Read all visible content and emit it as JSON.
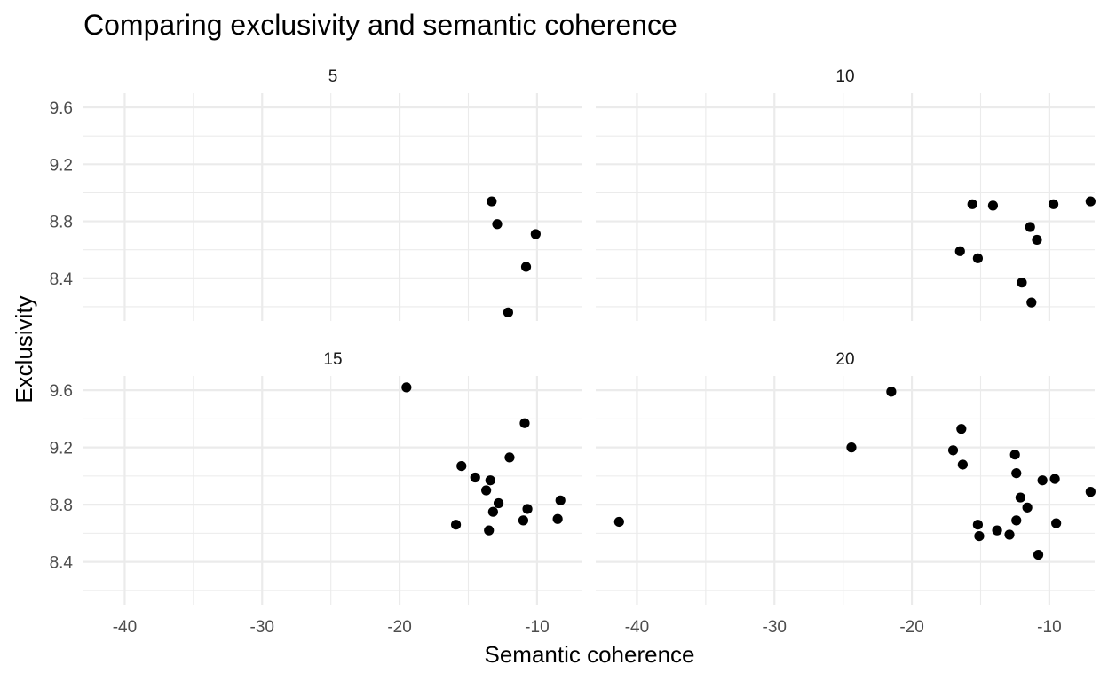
{
  "chart_data": {
    "type": "scatter",
    "title": "Comparing exclusivity and semantic coherence",
    "xlabel": "Semantic coherence",
    "ylabel": "Exclusivity",
    "xlim": [
      -43,
      -6.7
    ],
    "ylim": [
      8.1,
      9.7
    ],
    "x_ticks": [
      -40,
      -30,
      -20,
      -10
    ],
    "x_tick_labels": [
      "-40",
      "-30",
      "-20",
      "-10"
    ],
    "y_ticks": [
      8.4,
      8.8,
      9.2,
      9.6
    ],
    "y_tick_labels": [
      "8.4",
      "8.8",
      "9.2",
      "9.6"
    ],
    "grid": true,
    "legend": "none",
    "facets": [
      {
        "label": "5",
        "points": [
          {
            "x": -13.3,
            "y": 8.94
          },
          {
            "x": -12.9,
            "y": 8.78
          },
          {
            "x": -10.1,
            "y": 8.71
          },
          {
            "x": -10.8,
            "y": 8.48
          },
          {
            "x": -12.1,
            "y": 8.16
          }
        ]
      },
      {
        "label": "10",
        "points": [
          {
            "x": -15.6,
            "y": 8.92
          },
          {
            "x": -14.1,
            "y": 8.91
          },
          {
            "x": -9.7,
            "y": 8.92
          },
          {
            "x": -7.0,
            "y": 8.94
          },
          {
            "x": -11.4,
            "y": 8.76
          },
          {
            "x": -10.9,
            "y": 8.67
          },
          {
            "x": -16.5,
            "y": 8.59
          },
          {
            "x": -15.2,
            "y": 8.54
          },
          {
            "x": -12.0,
            "y": 8.37
          },
          {
            "x": -11.3,
            "y": 8.23
          }
        ]
      },
      {
        "label": "15",
        "points": [
          {
            "x": -19.5,
            "y": 9.62
          },
          {
            "x": -10.9,
            "y": 9.37
          },
          {
            "x": -15.5,
            "y": 9.07
          },
          {
            "x": -12.0,
            "y": 9.13
          },
          {
            "x": -14.5,
            "y": 8.99
          },
          {
            "x": -13.4,
            "y": 8.97
          },
          {
            "x": -13.7,
            "y": 8.9
          },
          {
            "x": -12.8,
            "y": 8.81
          },
          {
            "x": -8.3,
            "y": 8.83
          },
          {
            "x": -13.2,
            "y": 8.75
          },
          {
            "x": -10.7,
            "y": 8.77
          },
          {
            "x": -8.5,
            "y": 8.7
          },
          {
            "x": -11.0,
            "y": 8.69
          },
          {
            "x": -15.9,
            "y": 8.66
          },
          {
            "x": -13.5,
            "y": 8.62
          }
        ]
      },
      {
        "label": "20",
        "points": [
          {
            "x": -21.5,
            "y": 9.59
          },
          {
            "x": -16.4,
            "y": 9.33
          },
          {
            "x": -24.4,
            "y": 9.2
          },
          {
            "x": -17.0,
            "y": 9.18
          },
          {
            "x": -12.5,
            "y": 9.15
          },
          {
            "x": -16.3,
            "y": 9.08
          },
          {
            "x": -12.4,
            "y": 9.02
          },
          {
            "x": -10.5,
            "y": 8.97
          },
          {
            "x": -9.6,
            "y": 8.98
          },
          {
            "x": -7.0,
            "y": 8.89
          },
          {
            "x": -12.1,
            "y": 8.85
          },
          {
            "x": -11.6,
            "y": 8.78
          },
          {
            "x": -12.4,
            "y": 8.69
          },
          {
            "x": -15.2,
            "y": 8.66
          },
          {
            "x": -41.3,
            "y": 8.68
          },
          {
            "x": -9.5,
            "y": 8.67
          },
          {
            "x": -13.8,
            "y": 8.62
          },
          {
            "x": -12.9,
            "y": 8.59
          },
          {
            "x": -15.1,
            "y": 8.58
          },
          {
            "x": -10.8,
            "y": 8.45
          }
        ]
      }
    ]
  }
}
